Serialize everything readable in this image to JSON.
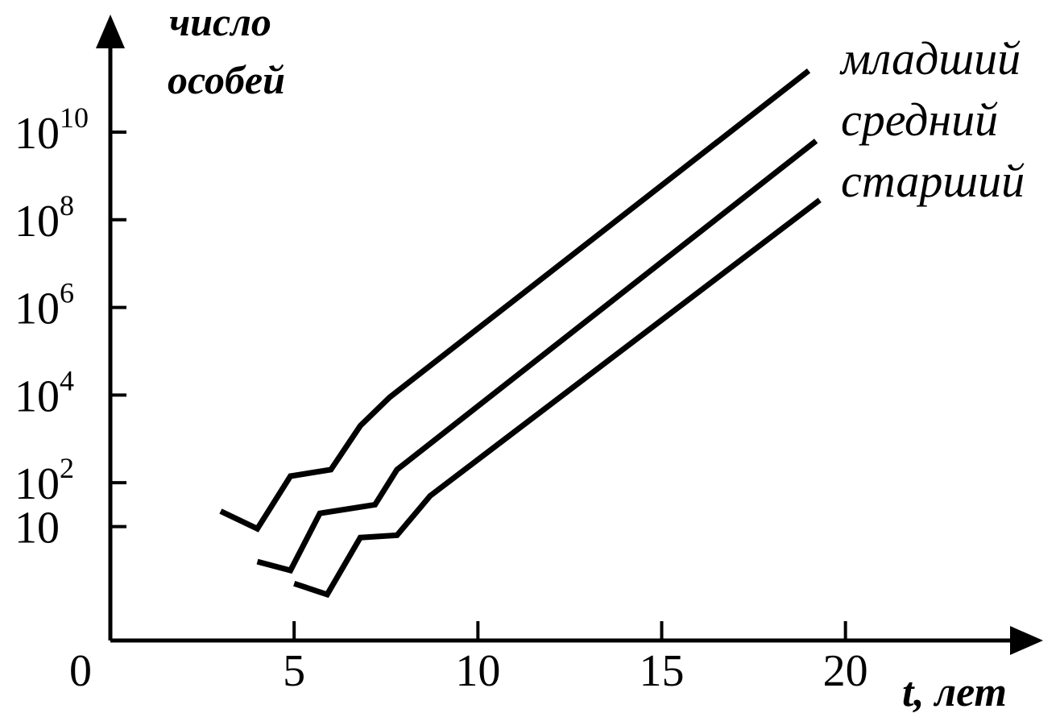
{
  "chart_data": {
    "type": "line",
    "xlabel": "t, лет",
    "ylabel_lines": [
      "число",
      "особей"
    ],
    "x_origin_label": "0",
    "x_ticks": [
      5,
      10,
      15,
      20
    ],
    "y_scale": "log10",
    "y_ticks": [
      {
        "exp": 1,
        "base": "10",
        "sup": ""
      },
      {
        "exp": 2,
        "base": "10",
        "sup": "2"
      },
      {
        "exp": 4,
        "base": "10",
        "sup": "4"
      },
      {
        "exp": 6,
        "base": "10",
        "sup": "6"
      },
      {
        "exp": 8,
        "base": "10",
        "sup": "8"
      },
      {
        "exp": 10,
        "base": "10",
        "sup": "10"
      }
    ],
    "xlim": [
      0,
      24.5
    ],
    "ylim_exp": [
      -1.6,
      12.5
    ],
    "series": [
      {
        "name": "младший",
        "points": [
          [
            3.0,
            1.35
          ],
          [
            4.0,
            0.95
          ],
          [
            4.9,
            2.15
          ],
          [
            6.0,
            2.3
          ],
          [
            6.8,
            3.3
          ],
          [
            7.6,
            3.95
          ],
          [
            19.0,
            11.4
          ]
        ]
      },
      {
        "name": "средний",
        "points": [
          [
            4.0,
            0.2
          ],
          [
            4.9,
            0.0
          ],
          [
            5.7,
            1.3
          ],
          [
            7.2,
            1.5
          ],
          [
            7.8,
            2.3
          ],
          [
            19.2,
            9.8
          ]
        ]
      },
      {
        "name": "старший",
        "points": [
          [
            5.0,
            -0.3
          ],
          [
            5.9,
            -0.55
          ],
          [
            6.8,
            0.75
          ],
          [
            7.8,
            0.8
          ],
          [
            8.7,
            1.7
          ],
          [
            19.3,
            8.45
          ]
        ]
      }
    ],
    "legend_placement": "top-right",
    "grid": false
  }
}
